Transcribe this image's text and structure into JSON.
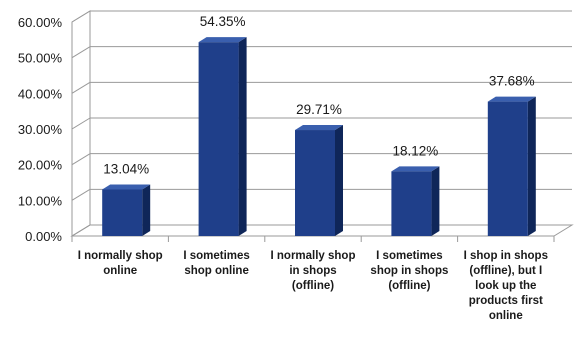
{
  "chart_data": {
    "type": "bar",
    "style": "3d-column",
    "categories": [
      "I normally shop online",
      "I sometimes shop online",
      "I normally shop in shops (offline)",
      "I sometimes shop in shops (offline)",
      "I shop in shops (offline), but I look up the products first online"
    ],
    "category_label_lines": [
      [
        "I normally shop",
        "online"
      ],
      [
        "I sometimes",
        "shop online"
      ],
      [
        "I normally shop",
        "in shops",
        "(offline)"
      ],
      [
        "I sometimes",
        "shop in shops",
        "(offline)"
      ],
      [
        "I shop in shops",
        "(offline), but I",
        "look up the",
        "products first",
        "online"
      ]
    ],
    "values": [
      13.04,
      54.35,
      29.71,
      18.12,
      37.68
    ],
    "data_labels": [
      "13.04%",
      "54.35%",
      "29.71%",
      "18.12%",
      "37.68%"
    ],
    "yticks": [
      "0.00%",
      "10.00%",
      "20.00%",
      "30.00%",
      "40.00%",
      "50.00%",
      "60.00%"
    ],
    "ylim": [
      0,
      60
    ],
    "grid": true,
    "legend": "none",
    "title": "",
    "xlabel": "",
    "ylabel": "",
    "colors": {
      "bar_front": "#1f3f8a",
      "bar_side": "#0f2659",
      "bar_top": "#3a5fae",
      "grid": "#9a9a9a"
    }
  }
}
